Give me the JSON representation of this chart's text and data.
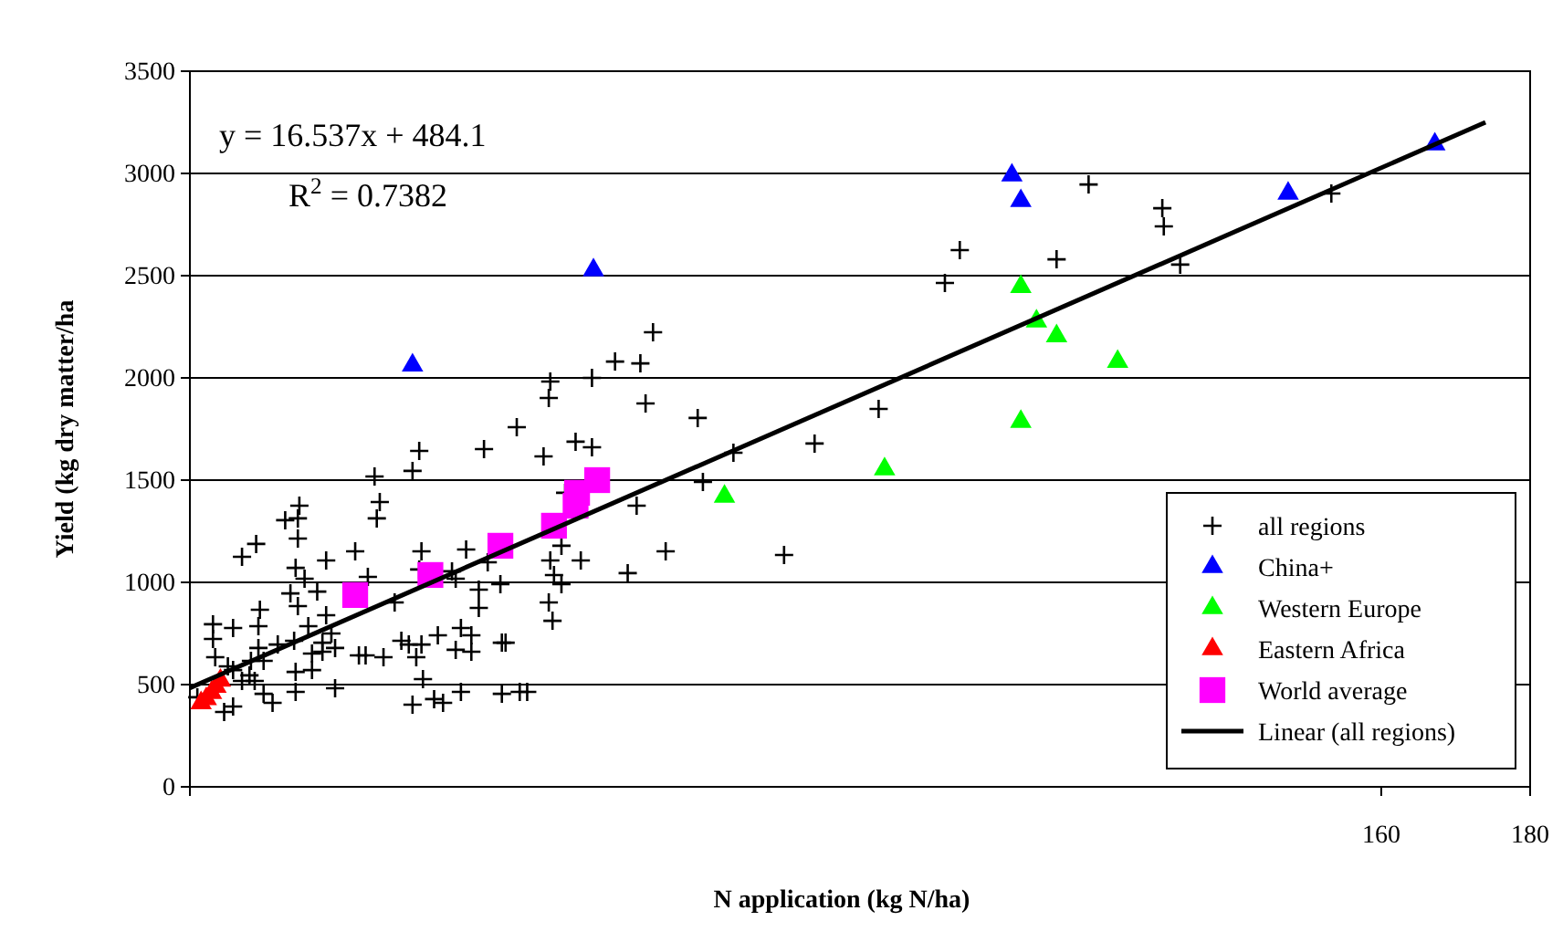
{
  "chart_data": {
    "type": "scatter",
    "xlabel": "N application (kg N/ha)",
    "ylabel": "Yield (kg dry matter/ha",
    "xlim": [
      0,
      180
    ],
    "xticks": [
      160,
      180
    ],
    "ylim": [
      0,
      3500
    ],
    "yticks": [
      0,
      500,
      1000,
      1500,
      2000,
      2500,
      3000,
      3500
    ],
    "grid": "y",
    "legend": "bottom right",
    "annotations": [
      "y = 16.537x + 484.1",
      "R$^{2}$ = 0.7382"
    ],
    "series": [
      {
        "name": "all regions",
        "color": "#000000",
        "marker": "cross",
        "x": [
          92.5,
          103.4,
          101.4,
          116.4,
          120.7,
          130.6,
          130.8,
          133,
          153.3,
          62.2,
          57.1,
          60.5,
          54,
          48.4,
          48.2,
          61.2,
          43.9,
          68.2,
          51.8,
          54,
          47.5,
          73,
          83.9,
          68.9,
          50.4,
          60,
          49.9,
          48.4,
          52.5,
          48.9,
          49.9,
          58.8,
          63.9,
          79.8,
          48.2,
          48.7,
          42.4,
          44.3,
          45.3,
          39.5,
          30.8,
          29.9,
          24.8,
          25.5,
          25.1,
          14.7,
          14.5,
          12.8,
          14.5,
          8.9,
          7,
          22.2,
          18.3,
          14.2,
          15.4,
          23.9,
          13.5,
          17.1,
          14.5,
          9.4,
          18.3,
          3.1,
          5.8,
          9.2,
          3.1,
          15.9,
          19,
          17.8,
          14,
          11.8,
          9.2,
          8.2,
          9.9,
          3.4,
          5.8,
          16.4,
          17.8,
          19.5,
          14.2,
          16.4,
          8,
          7,
          8.7,
          5.1,
          14.2,
          19.5,
          9.9,
          11.1,
          5.8,
          4.6,
          1,
          31.1,
          30.8,
          27.5,
          28.4,
          29.4,
          30.4,
          31.1,
          33.3,
          31.3,
          29.9,
          32.8,
          34,
          22.7,
          23.6,
          26,
          36.4,
          35.7,
          35.2,
          36.4,
          37.8,
          35.7,
          37.8,
          38.8,
          38.8,
          37.1,
          40,
          41.7,
          41.9,
          41.9
        ],
        "values": [
          1848,
          2625,
          2464,
          2580,
          2946,
          2830,
          2741,
          2554,
          2902,
          2223,
          2080,
          2071,
          2000,
          1982,
          1902,
          1875,
          1759,
          1804,
          1688,
          1661,
          1616,
          1634,
          1679,
          1491,
          1438,
          1375,
          1179,
          1107,
          1107,
          1036,
          991,
          1045,
          1152,
          1134,
          902,
          812,
          705,
          464,
          464,
          1652,
          1643,
          1545,
          1518,
          1393,
          1313,
          1375,
          1313,
          1304,
          1214,
          1188,
          1125,
          1152,
          1107,
          1071,
          1018,
          1027,
          946,
          955,
          884,
          866,
          839,
          795,
          777,
          786,
          723,
          786,
          750,
          705,
          714,
          696,
          679,
          616,
          616,
          634,
          571,
          652,
          661,
          679,
          562,
          571,
          545,
          518,
          518,
          589,
          464,
          482,
          455,
          411,
          393,
          366,
          438,
          1152,
          1063,
          902,
          714,
          696,
          634,
          696,
          741,
          527,
          402,
          429,
          411,
          643,
          643,
          634,
          464,
          1018,
          1054,
          777,
          741,
          670,
          661,
          964,
          875,
          1161,
          1098,
          991,
          705,
          455
        ]
      },
      {
        "name": "China+",
        "color": "#0000ff",
        "marker": "triangle",
        "x": [
          29.9,
          54.2,
          110.4,
          111.6,
          147.5,
          167.2
        ],
        "values": [
          2062,
          2527,
          2991,
          2866,
          2902,
          3143
        ]
      },
      {
        "name": "Western Europe",
        "color": "#00ff00",
        "marker": "triangle",
        "x": [
          111.6,
          113.7,
          116.4,
          124.6,
          111.6,
          93.3,
          71.8
        ],
        "values": [
          2446,
          2277,
          2205,
          2080,
          1786,
          1554,
          1420
        ]
      },
      {
        "name": "Eastern Africa",
        "color": "#ff0000",
        "marker": "triangle",
        "x": [
          1.5,
          2.2,
          2.9,
          3.5,
          4.1
        ],
        "values": [
          410,
          430,
          460,
          490,
          520
        ]
      },
      {
        "name": "World average",
        "color": "#ff00ff",
        "marker": "square",
        "x": [
          22.2,
          32.3,
          41.7,
          48.9,
          51.8,
          52,
          54.7
        ],
        "values": [
          938,
          1036,
          1179,
          1277,
          1375,
          1438,
          1500
        ]
      },
      {
        "name": "Linear (all regions)",
        "type": "line",
        "color": "#000000",
        "marker": "none",
        "line_style": "solid",
        "x": [
          0,
          174
        ],
        "values": [
          484,
          3250
        ]
      }
    ]
  }
}
